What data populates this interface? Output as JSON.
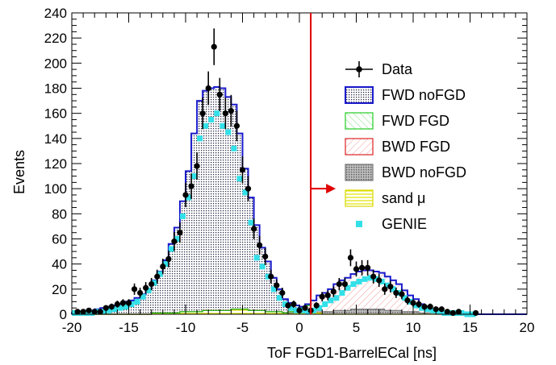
{
  "chart_data": {
    "type": "histogram",
    "xlabel": "ToF FGD1-BarrelECal [ns]",
    "ylabel": "Events",
    "xlim": [
      -20,
      20
    ],
    "ylim": [
      0,
      240
    ],
    "x_ticks": [
      "-20",
      "-15",
      "-10",
      "-5",
      "0",
      "5",
      "10",
      "15",
      "20"
    ],
    "y_ticks": [
      "0",
      "20",
      "40",
      "60",
      "80",
      "100",
      "120",
      "140",
      "160",
      "180",
      "200",
      "220",
      "240"
    ],
    "cut_line_x": 1,
    "cut_arrow_y": 100,
    "bin_width": 0.5,
    "bin_centers": [
      -19.75,
      -19.25,
      -18.75,
      -18.25,
      -17.75,
      -17.25,
      -16.75,
      -16.25,
      -15.75,
      -15.25,
      -14.75,
      -14.25,
      -13.75,
      -13.25,
      -12.75,
      -12.25,
      -11.75,
      -11.25,
      -10.75,
      -10.25,
      -9.75,
      -9.25,
      -8.75,
      -8.25,
      -7.75,
      -7.25,
      -6.75,
      -6.25,
      -5.75,
      -5.25,
      -4.75,
      -4.25,
      -3.75,
      -3.25,
      -2.75,
      -2.25,
      -1.75,
      -1.25,
      -0.75,
      -0.25,
      0.25,
      0.75,
      1.25,
      1.75,
      2.25,
      2.75,
      3.25,
      3.75,
      4.25,
      4.75,
      5.25,
      5.75,
      6.25,
      6.75,
      7.25,
      7.75,
      8.25,
      8.75,
      9.25,
      9.75,
      10.25,
      10.75,
      11.25,
      11.75,
      12.25,
      12.75,
      13.25,
      13.75,
      14.25,
      14.75,
      15.25,
      15.75,
      16.25,
      16.75,
      17.25,
      17.75,
      18.25,
      18.75,
      19.25,
      19.75
    ],
    "series": [
      {
        "name": "Data",
        "style": "points-with-errors",
        "color": "#000000",
        "x": [
          -19.5,
          -19,
          -18.5,
          -18,
          -17.5,
          -17,
          -16.5,
          -16,
          -15.5,
          -15,
          -14.5,
          -14,
          -13.5,
          -13,
          -12.5,
          -12,
          -11.5,
          -11,
          -10.5,
          -10,
          -9.5,
          -9,
          -8.5,
          -8,
          -7.5,
          -7,
          -6.5,
          -6,
          -5.5,
          -5,
          -4.5,
          -4,
          -3.5,
          -3,
          -2.5,
          -2,
          -1.5,
          -1,
          -0.5,
          0,
          0.5,
          1,
          1.5,
          2,
          2.5,
          3,
          3.5,
          4,
          4.5,
          5,
          5.5,
          6,
          6.5,
          7,
          7.5,
          8,
          8.5,
          9,
          9.5,
          10,
          10.5,
          11,
          11.5,
          12,
          12.5,
          13,
          13.5,
          14,
          15.5
        ],
        "y": [
          2,
          2,
          3,
          2,
          2,
          5,
          6,
          8,
          9,
          9,
          20,
          17,
          21,
          24,
          30,
          38,
          44,
          58,
          65,
          95,
          102,
          118,
          160,
          180,
          213,
          175,
          160,
          162,
          150,
          115,
          100,
          68,
          55,
          46,
          30,
          23,
          17,
          7,
          8,
          3,
          5,
          3,
          7,
          14,
          15,
          18,
          24,
          24,
          45,
          36,
          37,
          37,
          30,
          27,
          20,
          22,
          17,
          16,
          11,
          9,
          8,
          6,
          6,
          4,
          4,
          2,
          1,
          2,
          1
        ],
        "yerr": [
          1.5,
          1.5,
          1.8,
          1.5,
          1.5,
          2.2,
          2.5,
          2.8,
          3,
          3,
          4.5,
          4.1,
          4.6,
          4.9,
          5.5,
          6.2,
          6.6,
          7.6,
          8.1,
          9.7,
          10.1,
          10.9,
          12.6,
          13.4,
          14.6,
          13.2,
          12.6,
          12.7,
          12.2,
          10.7,
          10,
          8.2,
          7.4,
          6.8,
          5.5,
          4.8,
          4.1,
          2.6,
          2.8,
          1.7,
          2.2,
          1.7,
          2.6,
          3.7,
          3.9,
          4.2,
          4.9,
          4.9,
          6.7,
          6,
          6.1,
          6.1,
          5.5,
          5.2,
          4.5,
          4.7,
          4.1,
          4,
          3.3,
          3,
          2.8,
          2.5,
          2.5,
          2,
          2,
          1.5,
          1,
          1.5,
          1
        ]
      },
      {
        "name": "GENIE",
        "style": "squares",
        "color": "#33e0e8",
        "x": [
          -19.75,
          -19.25,
          -18.75,
          -18.25,
          -17.75,
          -17.25,
          -16.75,
          -16.25,
          -15.75,
          -15.25,
          -14.75,
          -14.25,
          -13.75,
          -13.25,
          -12.75,
          -12.25,
          -11.75,
          -11.25,
          -10.75,
          -10.25,
          -9.75,
          -9.25,
          -8.75,
          -8.25,
          -7.75,
          -7.25,
          -6.75,
          -6.25,
          -5.75,
          -5.25,
          -4.75,
          -4.25,
          -3.75,
          -3.25,
          -2.75,
          -2.25,
          -1.75,
          -1.25,
          -0.75,
          -0.25,
          0.25,
          0.75,
          1.25,
          1.75,
          2.25,
          2.75,
          3.25,
          3.75,
          4.25,
          4.75,
          5.25,
          5.75,
          6.25,
          6.75,
          7.25,
          7.75,
          8.25,
          8.75,
          9.25,
          9.75,
          10.25,
          10.75,
          11.25,
          11.75,
          12.25,
          12.75,
          13.25,
          13.75,
          14.25,
          14.75,
          15.25
        ],
        "y": [
          1,
          1,
          1,
          1,
          2,
          2,
          3,
          4,
          5,
          6,
          8,
          10,
          14,
          19,
          25,
          32,
          40,
          52,
          60,
          78,
          93,
          110,
          140,
          150,
          155,
          160,
          150,
          145,
          132,
          108,
          97,
          73,
          45,
          38,
          30,
          20,
          13,
          8,
          5,
          3,
          3,
          2,
          3,
          5,
          8,
          11,
          13,
          17,
          21,
          24,
          26,
          28,
          29,
          28,
          26,
          23,
          20,
          17,
          13,
          10,
          7,
          5,
          4,
          3,
          2,
          1,
          1,
          1,
          1,
          0,
          0
        ]
      },
      {
        "name": "FWD noFGD",
        "style": "step-filled",
        "color": "#1a1acc",
        "y": [
          1,
          2,
          3,
          3,
          4,
          5,
          6,
          7,
          8,
          10,
          11,
          13,
          16,
          20,
          26,
          33,
          42,
          55,
          68,
          88,
          112,
          142,
          168,
          175,
          177,
          178,
          177,
          170,
          163,
          140,
          112,
          90,
          68,
          50,
          40,
          27,
          18,
          11,
          7,
          3,
          1,
          1,
          0,
          0,
          0,
          0,
          0,
          0,
          0,
          0,
          0,
          0,
          0,
          0,
          0,
          0,
          0,
          0,
          0,
          0,
          0,
          0,
          0,
          0,
          0,
          0,
          0,
          0,
          0,
          0,
          0,
          0,
          0,
          0,
          0,
          0,
          0,
          0,
          0,
          0
        ]
      },
      {
        "name": "FWD FGD",
        "style": "step-filled",
        "color": "#22cc22",
        "y": [
          0,
          0,
          0,
          0,
          0,
          0,
          0,
          0,
          0,
          0,
          0,
          0,
          0,
          0,
          0,
          0,
          0,
          0,
          0,
          0,
          0,
          0,
          0,
          0,
          0,
          0,
          0,
          0,
          0,
          0,
          0,
          0,
          0,
          0,
          0,
          0,
          0,
          0,
          0,
          0,
          0,
          0,
          0,
          0,
          0,
          0,
          0,
          0,
          0,
          0,
          0,
          0,
          0,
          0,
          0,
          0,
          0,
          0,
          0,
          0,
          0,
          0,
          0,
          0,
          0,
          0,
          0,
          0,
          0,
          0,
          0,
          0,
          0,
          0,
          0,
          0,
          0,
          0,
          0,
          0
        ]
      },
      {
        "name": "BWD FGD",
        "style": "step-filled",
        "color": "#dd2222",
        "y": [
          0,
          0,
          0,
          0,
          0,
          0,
          0,
          0,
          0,
          0,
          0,
          0,
          0,
          0,
          0,
          0,
          0,
          0,
          0,
          0,
          0,
          0,
          0,
          0,
          0,
          0,
          0,
          0,
          0,
          0,
          0,
          0,
          0,
          0,
          0,
          0,
          0,
          0,
          1,
          2,
          3,
          5,
          8,
          12,
          15,
          18,
          21,
          24,
          26,
          28,
          30,
          31,
          31,
          30,
          29,
          27,
          24,
          21,
          17,
          13,
          10,
          7,
          5,
          3,
          2,
          1,
          1,
          0,
          0,
          0,
          0,
          0,
          0,
          0,
          0,
          0,
          0,
          0,
          0,
          0
        ]
      },
      {
        "name": "BWD noFGD",
        "style": "step-filled",
        "color": "#777777",
        "y": [
          0,
          0,
          0,
          0,
          0,
          0,
          0,
          0,
          0,
          0,
          0,
          0,
          0,
          0,
          0,
          0,
          0,
          0,
          0,
          0,
          0,
          0,
          0,
          0,
          0,
          0,
          0,
          0,
          0,
          0,
          0,
          0,
          0,
          0,
          0,
          0,
          0,
          0,
          0,
          1,
          1,
          1,
          2,
          2,
          2,
          2,
          3,
          3,
          3,
          4,
          4,
          4,
          4,
          4,
          4,
          3,
          3,
          3,
          2,
          2,
          2,
          1,
          1,
          1,
          0,
          0,
          0,
          0,
          0,
          0,
          0,
          0,
          0,
          0,
          0,
          0,
          0,
          0,
          0,
          0
        ]
      },
      {
        "name": "sand μ",
        "style": "step-filled",
        "color": "#d8d800",
        "y": [
          0,
          0,
          0,
          0,
          0,
          0,
          0,
          0,
          0,
          0,
          0,
          0,
          0,
          0,
          1,
          1,
          1,
          1,
          1,
          2,
          2,
          2,
          2,
          3,
          3,
          3,
          3,
          3,
          4,
          4,
          4,
          3,
          3,
          3,
          2,
          2,
          2,
          1,
          1,
          1,
          1,
          1,
          1,
          1,
          0,
          0,
          0,
          0,
          0,
          0,
          0,
          0,
          0,
          0,
          0,
          0,
          0,
          0,
          0,
          0,
          0,
          0,
          0,
          0,
          0,
          0,
          0,
          0,
          0,
          0,
          0,
          0,
          0,
          0,
          0,
          0,
          0,
          0,
          0,
          0
        ]
      }
    ]
  }
}
